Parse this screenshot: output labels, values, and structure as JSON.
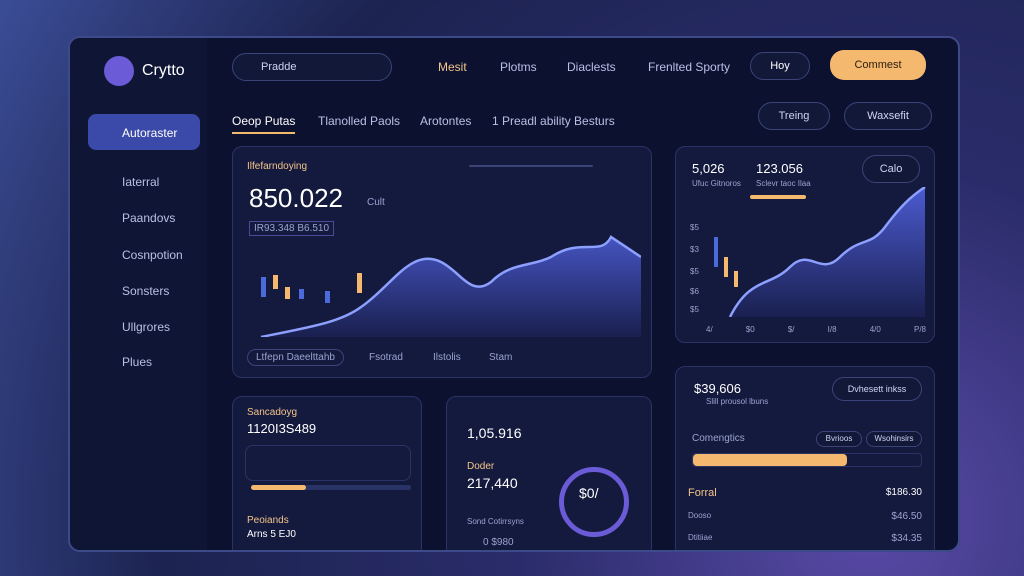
{
  "sidebar": {
    "brand": "Crytto",
    "items": [
      "Autoraster",
      "Iaterral",
      "Paandovs",
      "Cosnpotion",
      "Sonsters",
      "Ullgrores",
      "Plues"
    ]
  },
  "topbar": {
    "search": "Pradde",
    "links": [
      "Mesit",
      "Plotms",
      "Diaclests",
      "Frenlted Sporty"
    ],
    "alert_button": "Hoy",
    "primary_button": "Commest"
  },
  "tabs": {
    "items": [
      "Oeop Putas",
      "Tlanolled Paols",
      "Arotontes",
      "1 Preadl ability Besturs"
    ],
    "buttons": [
      "Treing",
      "Waxsefit"
    ]
  },
  "main_card": {
    "title": "Ilfefarndoying",
    "value": "850.022",
    "unit": "Cult",
    "sub": "IR93.348 B6.510",
    "footer": [
      "Ltfepn Daeelttahb",
      "Fsotrad",
      "Ilstolis",
      "Stam"
    ]
  },
  "side_chart": {
    "stats": [
      {
        "value": "5,026",
        "label": "Ufuc Gitnoros"
      },
      {
        "value": "123.056",
        "label": "Sclevr taoc Ilaa"
      }
    ],
    "button": "Calo",
    "y_labels": [
      "$5",
      "$3",
      "$5",
      "$6",
      "$5"
    ],
    "x_labels": [
      "4/",
      "$0",
      "$/",
      "I/8",
      "4/0",
      "P/8"
    ]
  },
  "wallet_card": {
    "title": "Sancadoyg",
    "value": "1120I3S489",
    "footer_title": "Peoiands",
    "footer_value": "Arns 5 EJ0"
  },
  "gauge_card": {
    "value": "1,05.916",
    "label": "Doder",
    "value2": "217,440",
    "caption": "Sond Cotirrsyns",
    "gauge": "$0/",
    "footer": "0 $980"
  },
  "portfolio_card": {
    "value": "$39,606",
    "sub": "Slill prousol lbuns",
    "button": "Dvhesett inkss",
    "section": "Comengtics",
    "pills": [
      "Bvrioos",
      "Wsohinsirs"
    ],
    "rows": [
      {
        "label": "Forral",
        "value": "$186.30"
      },
      {
        "label": "Dooso",
        "value": "$46.50"
      },
      {
        "label": "Dtitiiae",
        "value": "$34.35"
      }
    ]
  }
}
